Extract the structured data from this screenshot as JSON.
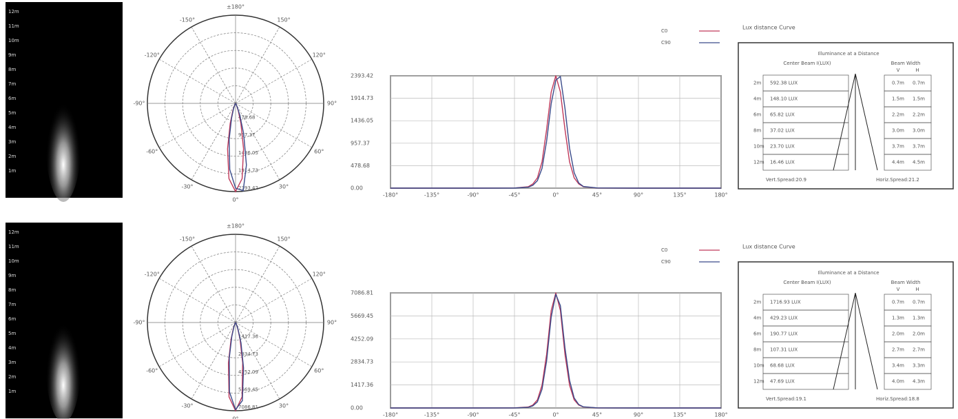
{
  "chart_data": [
    {
      "type": "polar",
      "rlim": [
        0,
        2393.42
      ],
      "rticks": [
        478.68,
        957.37,
        1436.05,
        1914.73,
        2393.42
      ],
      "thetaticks": [
        {
          "value": 180,
          "label": "±180°"
        },
        {
          "value": -150,
          "label": "-150°"
        },
        {
          "value": 150,
          "label": "150°"
        },
        {
          "value": -120,
          "label": "-120°"
        },
        {
          "value": 120,
          "label": "120°"
        },
        {
          "value": -90,
          "label": "-90°"
        },
        {
          "value": 90,
          "label": "90°"
        },
        {
          "value": -60,
          "label": "-60°"
        },
        {
          "value": 60,
          "label": "60°"
        },
        {
          "value": -30,
          "label": "-30°"
        },
        {
          "value": 30,
          "label": "30°"
        },
        {
          "value": 0,
          "label": "0°"
        }
      ],
      "x": [
        -180,
        -90,
        -45,
        -30,
        -25,
        -20,
        -15,
        -10,
        -5,
        0,
        5,
        10,
        15,
        20,
        25,
        30,
        45,
        90,
        180
      ],
      "series": [
        {
          "name": "C0",
          "color": "#c0395a",
          "values": [
            0,
            0,
            3,
            30,
            90,
            220,
            560,
            1250,
            2050,
            2393.42,
            2050,
            1250,
            560,
            220,
            90,
            30,
            3,
            0,
            0
          ]
        },
        {
          "name": "C90",
          "color": "#3a4a8a",
          "values": [
            0,
            0,
            2,
            20,
            60,
            160,
            420,
            1000,
            1800,
            2300,
            2380,
            1700,
            850,
            330,
            110,
            35,
            4,
            0,
            0
          ]
        }
      ]
    },
    {
      "type": "line",
      "xlim": [
        -180,
        180
      ],
      "ylim": [
        0,
        2393.42
      ],
      "yticks": [
        {
          "value": 0,
          "label": "0.00"
        },
        478.68,
        957.37,
        1436.05,
        1914.73,
        2393.42
      ],
      "xticks": [
        {
          "value": -180,
          "label": "-180°"
        },
        {
          "value": -135,
          "label": "-135°"
        },
        {
          "value": -90,
          "label": "-90°"
        },
        {
          "value": -45,
          "label": "-45°"
        },
        {
          "value": 0,
          "label": "0°"
        },
        {
          "value": 45,
          "label": "45°"
        },
        {
          "value": 90,
          "label": "90°"
        },
        {
          "value": 135,
          "label": "135°"
        },
        {
          "value": 180,
          "label": "180°"
        }
      ],
      "x": [
        -180,
        -90,
        -45,
        -30,
        -25,
        -20,
        -15,
        -10,
        -5,
        0,
        5,
        10,
        15,
        20,
        25,
        30,
        45,
        90,
        180
      ],
      "series": [
        {
          "name": "C0",
          "color": "#c0395a",
          "values": [
            0,
            0,
            3,
            30,
            90,
            220,
            560,
            1250,
            2050,
            2393.42,
            2050,
            1250,
            560,
            220,
            90,
            30,
            3,
            0,
            0
          ]
        },
        {
          "name": "C90",
          "color": "#3a4a8a",
          "values": [
            0,
            0,
            2,
            20,
            60,
            160,
            420,
            1000,
            1800,
            2300,
            2380,
            1700,
            850,
            330,
            110,
            35,
            4,
            0,
            0
          ]
        }
      ]
    },
    {
      "type": "polar",
      "rlim": [
        0,
        7086.81
      ],
      "rticks": [
        1417.36,
        2834.73,
        4252.09,
        5669.45,
        7086.81
      ],
      "thetaticks": [
        {
          "value": 180,
          "label": "±180°"
        },
        {
          "value": -150,
          "label": "-150°"
        },
        {
          "value": 150,
          "label": "150°"
        },
        {
          "value": -120,
          "label": "-120°"
        },
        {
          "value": 120,
          "label": "120°"
        },
        {
          "value": -90,
          "label": "-90°"
        },
        {
          "value": 90,
          "label": "90°"
        },
        {
          "value": -60,
          "label": "-60°"
        },
        {
          "value": 60,
          "label": "60°"
        },
        {
          "value": -30,
          "label": "-30°"
        },
        {
          "value": 30,
          "label": "30°"
        },
        {
          "value": 0,
          "label": "0°"
        }
      ],
      "x": [
        -180,
        -90,
        -45,
        -30,
        -25,
        -20,
        -15,
        -10,
        -5,
        0,
        5,
        10,
        15,
        20,
        25,
        30,
        45,
        90,
        180
      ],
      "series": [
        {
          "name": "C0",
          "color": "#c0395a",
          "values": [
            0,
            0,
            5,
            60,
            180,
            500,
            1400,
            3300,
            6000,
            7086.81,
            6000,
            3300,
            1400,
            500,
            180,
            60,
            5,
            0,
            0
          ]
        },
        {
          "name": "C90",
          "color": "#3a4a8a",
          "values": [
            0,
            0,
            4,
            40,
            130,
            380,
            1150,
            2900,
            5600,
            7000,
            6300,
            3700,
            1700,
            620,
            210,
            70,
            6,
            0,
            0
          ]
        }
      ]
    },
    {
      "type": "line",
      "xlim": [
        -180,
        180
      ],
      "ylim": [
        0,
        7086.81
      ],
      "yticks": [
        {
          "value": 0,
          "label": "0.00"
        },
        1417.36,
        2834.73,
        4252.09,
        5669.45,
        7086.81
      ],
      "xticks": [
        {
          "value": -180,
          "label": "-180°"
        },
        {
          "value": -135,
          "label": "-135°"
        },
        {
          "value": -90,
          "label": "-90°"
        },
        {
          "value": -45,
          "label": "-45°"
        },
        {
          "value": 0,
          "label": "0°"
        },
        {
          "value": 45,
          "label": "45°"
        },
        {
          "value": 90,
          "label": "90°"
        },
        {
          "value": 135,
          "label": "135°"
        },
        {
          "value": 180,
          "label": "180°"
        }
      ],
      "x": [
        -180,
        -90,
        -45,
        -30,
        -25,
        -20,
        -15,
        -10,
        -5,
        0,
        5,
        10,
        15,
        20,
        25,
        30,
        45,
        90,
        180
      ],
      "series": [
        {
          "name": "C0",
          "color": "#c0395a",
          "values": [
            0,
            0,
            5,
            60,
            180,
            500,
            1400,
            3300,
            6000,
            7086.81,
            6000,
            3300,
            1400,
            500,
            180,
            60,
            5,
            0,
            0
          ]
        },
        {
          "name": "C90",
          "color": "#3a4a8a",
          "values": [
            0,
            0,
            4,
            40,
            130,
            380,
            1150,
            2900,
            5600,
            7000,
            6300,
            3700,
            1700,
            620,
            210,
            70,
            6,
            0,
            0
          ]
        }
      ]
    }
  ],
  "beam_images": [
    {
      "distances": [
        "12m",
        "11m",
        "10m",
        "9m",
        "8m",
        "7m",
        "6m",
        "5m",
        "4m",
        "3m",
        "2m",
        "1m"
      ]
    },
    {
      "distances": [
        "12m",
        "11m",
        "10m",
        "9m",
        "8m",
        "7m",
        "6m",
        "5m",
        "4m",
        "3m",
        "2m",
        "1m"
      ]
    }
  ],
  "tables": [
    {
      "title": "Lux distance Curve",
      "heading": "Illuminance at a Distance",
      "center_beam": "Center Beam I(LUX)",
      "beam_width": "Beam Width",
      "v": "V",
      "h": "H",
      "rows": [
        [
          "2m",
          "592.38 LUX",
          "0.7m",
          "0.7m"
        ],
        [
          "4m",
          "148.10 LUX",
          "1.5m",
          "1.5m"
        ],
        [
          "6m",
          "65.82 LUX",
          "2.2m",
          "2.2m"
        ],
        [
          "8m",
          "37.02 LUX",
          "3.0m",
          "3.0m"
        ],
        [
          "10m",
          "23.70 LUX",
          "3.7m",
          "3.7m"
        ],
        [
          "12m",
          "16.46 LUX",
          "4.4m",
          "4.5m"
        ]
      ],
      "vert_spread": "Vert.Spread:20.9",
      "horiz_spread": "Horiz.Spread:21.2"
    },
    {
      "title": "Lux distance Curve",
      "heading": "Illuminance at a Distance",
      "center_beam": "Center Beam I(LUX)",
      "beam_width": "Beam Width",
      "v": "V",
      "h": "H",
      "rows": [
        [
          "2m",
          "1716.93 LUX",
          "0.7m",
          "0.7m"
        ],
        [
          "4m",
          "429.23 LUX",
          "1.3m",
          "1.3m"
        ],
        [
          "6m",
          "190.77 LUX",
          "2.0m",
          "2.0m"
        ],
        [
          "8m",
          "107.31 LUX",
          "2.7m",
          "2.7m"
        ],
        [
          "10m",
          "68.68 LUX",
          "3.4m",
          "3.3m"
        ],
        [
          "12m",
          "47.69 LUX",
          "4.0m",
          "4.3m"
        ]
      ],
      "vert_spread": "Vert.Spread:19.1",
      "horiz_spread": "Horiz.Spread:18.8"
    }
  ]
}
